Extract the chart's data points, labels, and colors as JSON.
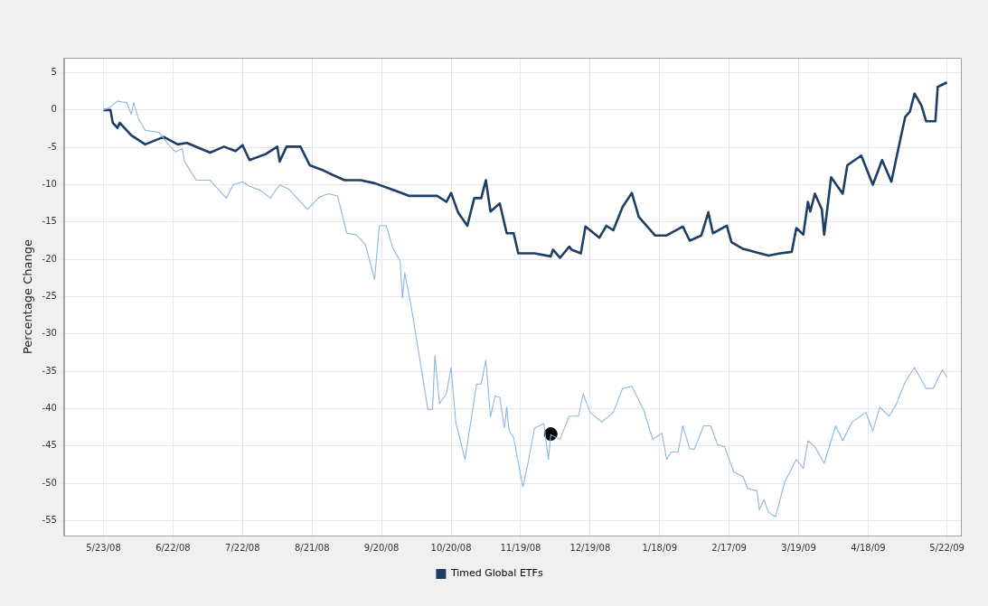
{
  "chart_data": {
    "type": "line",
    "ylabel": "Percentage Change",
    "xlim": [
      "2008-05-06",
      "2009-05-28"
    ],
    "xticks": [
      {
        "value": "2008-05-23",
        "label": "5/23/08"
      },
      {
        "value": "2008-06-22",
        "label": "6/22/08"
      },
      {
        "value": "2008-07-22",
        "label": "7/22/08"
      },
      {
        "value": "2008-08-21",
        "label": "8/21/08"
      },
      {
        "value": "2008-09-20",
        "label": "9/20/08"
      },
      {
        "value": "2008-10-20",
        "label": "10/20/08"
      },
      {
        "value": "2008-11-19",
        "label": "11/19/08"
      },
      {
        "value": "2008-12-19",
        "label": "12/19/08"
      },
      {
        "value": "2009-01-18",
        "label": "1/18/09"
      },
      {
        "value": "2009-02-17",
        "label": "2/17/09"
      },
      {
        "value": "2009-03-19",
        "label": "3/19/09"
      },
      {
        "value": "2009-04-18",
        "label": "4/18/09"
      },
      {
        "value": "2009-05-22",
        "label": "5/22/09"
      }
    ],
    "ylim": [
      -57,
      7
    ],
    "yticks": [
      5,
      0,
      -5,
      -10,
      -15,
      -20,
      -25,
      -30,
      -35,
      -40,
      -45,
      -50,
      -55
    ],
    "grid": true,
    "legend": "bottom",
    "marker": "none",
    "line_style": "solid",
    "series": [
      {
        "color": "#8fb6da",
        "x": [
          "2008-05-23",
          "2008-05-26",
          "2008-05-29",
          "2008-06-02",
          "2008-06-04",
          "2008-06-05",
          "2008-06-07",
          "2008-06-10",
          "2008-06-16",
          "2008-06-20",
          "2008-06-23",
          "2008-06-26",
          "2008-06-27",
          "2008-07-02",
          "2008-07-08",
          "2008-07-15",
          "2008-07-18",
          "2008-07-22",
          "2008-07-25",
          "2008-07-30",
          "2008-08-03",
          "2008-08-07",
          "2008-08-11",
          "2008-08-19",
          "2008-08-24",
          "2008-08-28",
          "2008-09-01",
          "2008-09-05",
          "2008-09-09",
          "2008-09-13",
          "2008-09-17",
          "2008-09-19",
          "2008-09-22",
          "2008-09-25",
          "2008-09-28",
          "2008-09-29",
          "2008-09-30",
          "2008-10-03",
          "2008-10-10",
          "2008-10-12",
          "2008-10-13",
          "2008-10-15",
          "2008-10-18",
          "2008-10-20",
          "2008-10-22",
          "2008-10-26",
          "2008-10-31",
          "2008-11-02",
          "2008-11-04",
          "2008-11-06",
          "2008-11-08",
          "2008-11-10",
          "2008-11-12",
          "2008-11-13",
          "2008-11-14",
          "2008-11-16",
          "2008-11-20",
          "2008-11-22",
          "2008-11-25",
          "2008-11-29",
          "2008-12-01",
          "2008-12-02",
          "2008-12-06",
          "2008-12-10",
          "2008-12-14",
          "2008-12-16",
          "2008-12-19",
          "2008-12-24",
          "2008-12-29",
          "2009-01-02",
          "2009-01-06",
          "2009-01-11",
          "2009-01-15",
          "2009-01-19",
          "2009-01-21",
          "2009-01-23",
          "2009-01-26",
          "2009-01-28",
          "2009-01-31",
          "2009-02-02",
          "2009-02-06",
          "2009-02-09",
          "2009-02-12",
          "2009-02-15",
          "2009-02-19",
          "2009-02-23",
          "2009-02-25",
          "2009-03-01",
          "2009-03-02",
          "2009-03-04",
          "2009-03-06",
          "2009-03-09",
          "2009-03-13",
          "2009-03-18",
          "2009-03-21",
          "2009-03-23",
          "2009-03-26",
          "2009-03-30",
          "2009-04-04",
          "2009-04-07",
          "2009-04-11",
          "2009-04-17",
          "2009-04-20",
          "2009-04-23",
          "2009-04-27",
          "2009-04-30",
          "2009-05-04",
          "2009-05-08",
          "2009-05-13",
          "2009-05-16",
          "2009-05-20",
          "2009-05-22"
        ],
        "values": [
          0,
          0.4,
          1.2,
          1,
          -0.6,
          1,
          -1.1,
          -2.7,
          -3,
          -4.6,
          -5.6,
          -5.2,
          -6.9,
          -9.4,
          -9.4,
          -11.8,
          -10,
          -9.6,
          -10.2,
          -10.8,
          -11.8,
          -10,
          -10.6,
          -13.3,
          -11.7,
          -11.2,
          -11.5,
          -16.5,
          -16.7,
          -18,
          -22.7,
          -15.5,
          -15.5,
          -18.6,
          -20.2,
          -25.2,
          -21.8,
          -26.7,
          -40.1,
          -40.1,
          -32.9,
          -39.3,
          -38,
          -34.5,
          -41.8,
          -46.8,
          -36.7,
          -36.7,
          -33.5,
          -41.1,
          -38.3,
          -38.5,
          -42.6,
          -39.8,
          -42.9,
          -43.9,
          -50.5,
          -47.6,
          -42.6,
          -42,
          -46.8,
          -43.5,
          -44.1,
          -41,
          -41,
          -38,
          -40.5,
          -41.8,
          -40.5,
          -37.3,
          -37,
          -40.1,
          -44.1,
          -43.3,
          -46.8,
          -45.8,
          -45.8,
          -42.3,
          -45.4,
          -45.4,
          -42.3,
          -42.3,
          -44.8,
          -45.1,
          -48.5,
          -49.1,
          -50.7,
          -51,
          -53.5,
          -52.2,
          -53.9,
          -54.5,
          -49.8,
          -46.8,
          -48,
          -44.3,
          -45.1,
          -47.3,
          -42.3,
          -44.3,
          -41.8,
          -40.5,
          -43,
          -39.8,
          -41,
          -39.5,
          -36.4,
          -34.5,
          -37.3,
          -37.3,
          -34.8,
          -35.8
        ]
      },
      {
        "name": "Timed Global ETFs",
        "color": "#1d3e66",
        "x": [
          "2008-05-23",
          "2008-05-26",
          "2008-05-27",
          "2008-05-29",
          "2008-05-30",
          "2008-06-04",
          "2008-06-10",
          "2008-06-18",
          "2008-06-24",
          "2008-06-28",
          "2008-07-08",
          "2008-07-14",
          "2008-07-19",
          "2008-07-22",
          "2008-07-25",
          "2008-08-01",
          "2008-08-06",
          "2008-08-07",
          "2008-08-10",
          "2008-08-16",
          "2008-08-20",
          "2008-08-26",
          "2008-08-30",
          "2008-09-04",
          "2008-09-11",
          "2008-09-17",
          "2008-09-25",
          "2008-10-02",
          "2008-10-14",
          "2008-10-18",
          "2008-10-20",
          "2008-10-23",
          "2008-10-27",
          "2008-10-30",
          "2008-11-02",
          "2008-11-04",
          "2008-11-06",
          "2008-11-10",
          "2008-11-13",
          "2008-11-16",
          "2008-11-18",
          "2008-11-25",
          "2008-12-02",
          "2008-12-03",
          "2008-12-06",
          "2008-12-10",
          "2008-12-11",
          "2008-12-15",
          "2008-12-17",
          "2008-12-23",
          "2008-12-26",
          "2008-12-29",
          "2009-01-02",
          "2009-01-06",
          "2009-01-09",
          "2009-01-16",
          "2009-01-21",
          "2009-01-28",
          "2009-01-31",
          "2009-02-05",
          "2009-02-08",
          "2009-02-10",
          "2009-02-16",
          "2009-02-18",
          "2009-02-23",
          "2009-03-06",
          "2009-03-11",
          "2009-03-16",
          "2009-03-18",
          "2009-03-21",
          "2009-03-23",
          "2009-03-24",
          "2009-03-26",
          "2009-03-29",
          "2009-03-30",
          "2009-04-02",
          "2009-04-07",
          "2009-04-09",
          "2009-04-15",
          "2009-04-20",
          "2009-04-24",
          "2009-04-28",
          "2009-05-01",
          "2009-05-04",
          "2009-05-06",
          "2009-05-08",
          "2009-05-11",
          "2009-05-13",
          "2009-05-17",
          "2009-05-18",
          "2009-05-22"
        ],
        "values": [
          0,
          0,
          -1.7,
          -2.4,
          -1.7,
          -3.4,
          -4.6,
          -3.6,
          -4.6,
          -4.4,
          -5.7,
          -4.9,
          -5.5,
          -4.7,
          -6.7,
          -5.9,
          -4.9,
          -6.9,
          -4.9,
          -4.9,
          -7.4,
          -8.1,
          -8.7,
          -9.4,
          -9.4,
          -9.8,
          -10.7,
          -11.5,
          -11.5,
          -12.3,
          -11.1,
          -13.7,
          -15.5,
          -11.8,
          -11.8,
          -9.4,
          -13.6,
          -12.5,
          -16.5,
          -16.5,
          -19.2,
          -19.2,
          -19.6,
          -18.7,
          -19.8,
          -18.3,
          -18.7,
          -19.2,
          -15.6,
          -17.1,
          -15.5,
          -16.1,
          -13,
          -11.1,
          -14.3,
          -16.8,
          -16.8,
          -15.6,
          -17.5,
          -16.8,
          -13.7,
          -16.5,
          -15.5,
          -17.7,
          -18.6,
          -19.5,
          -19.2,
          -19,
          -15.8,
          -16.7,
          -12.3,
          -13.6,
          -11.2,
          -13.3,
          -16.7,
          -9,
          -11.2,
          -7.4,
          -6.1,
          -10,
          -6.7,
          -9.6,
          -5.2,
          -0.9,
          -0.2,
          2.2,
          0.6,
          -1.5,
          -1.5,
          3.1,
          3.7
        ]
      },
      {
        "type": "scatter",
        "marker": "circle",
        "color": "#000000",
        "x": [
          "2008-12-02"
        ],
        "values": [
          -43.4
        ]
      }
    ]
  }
}
